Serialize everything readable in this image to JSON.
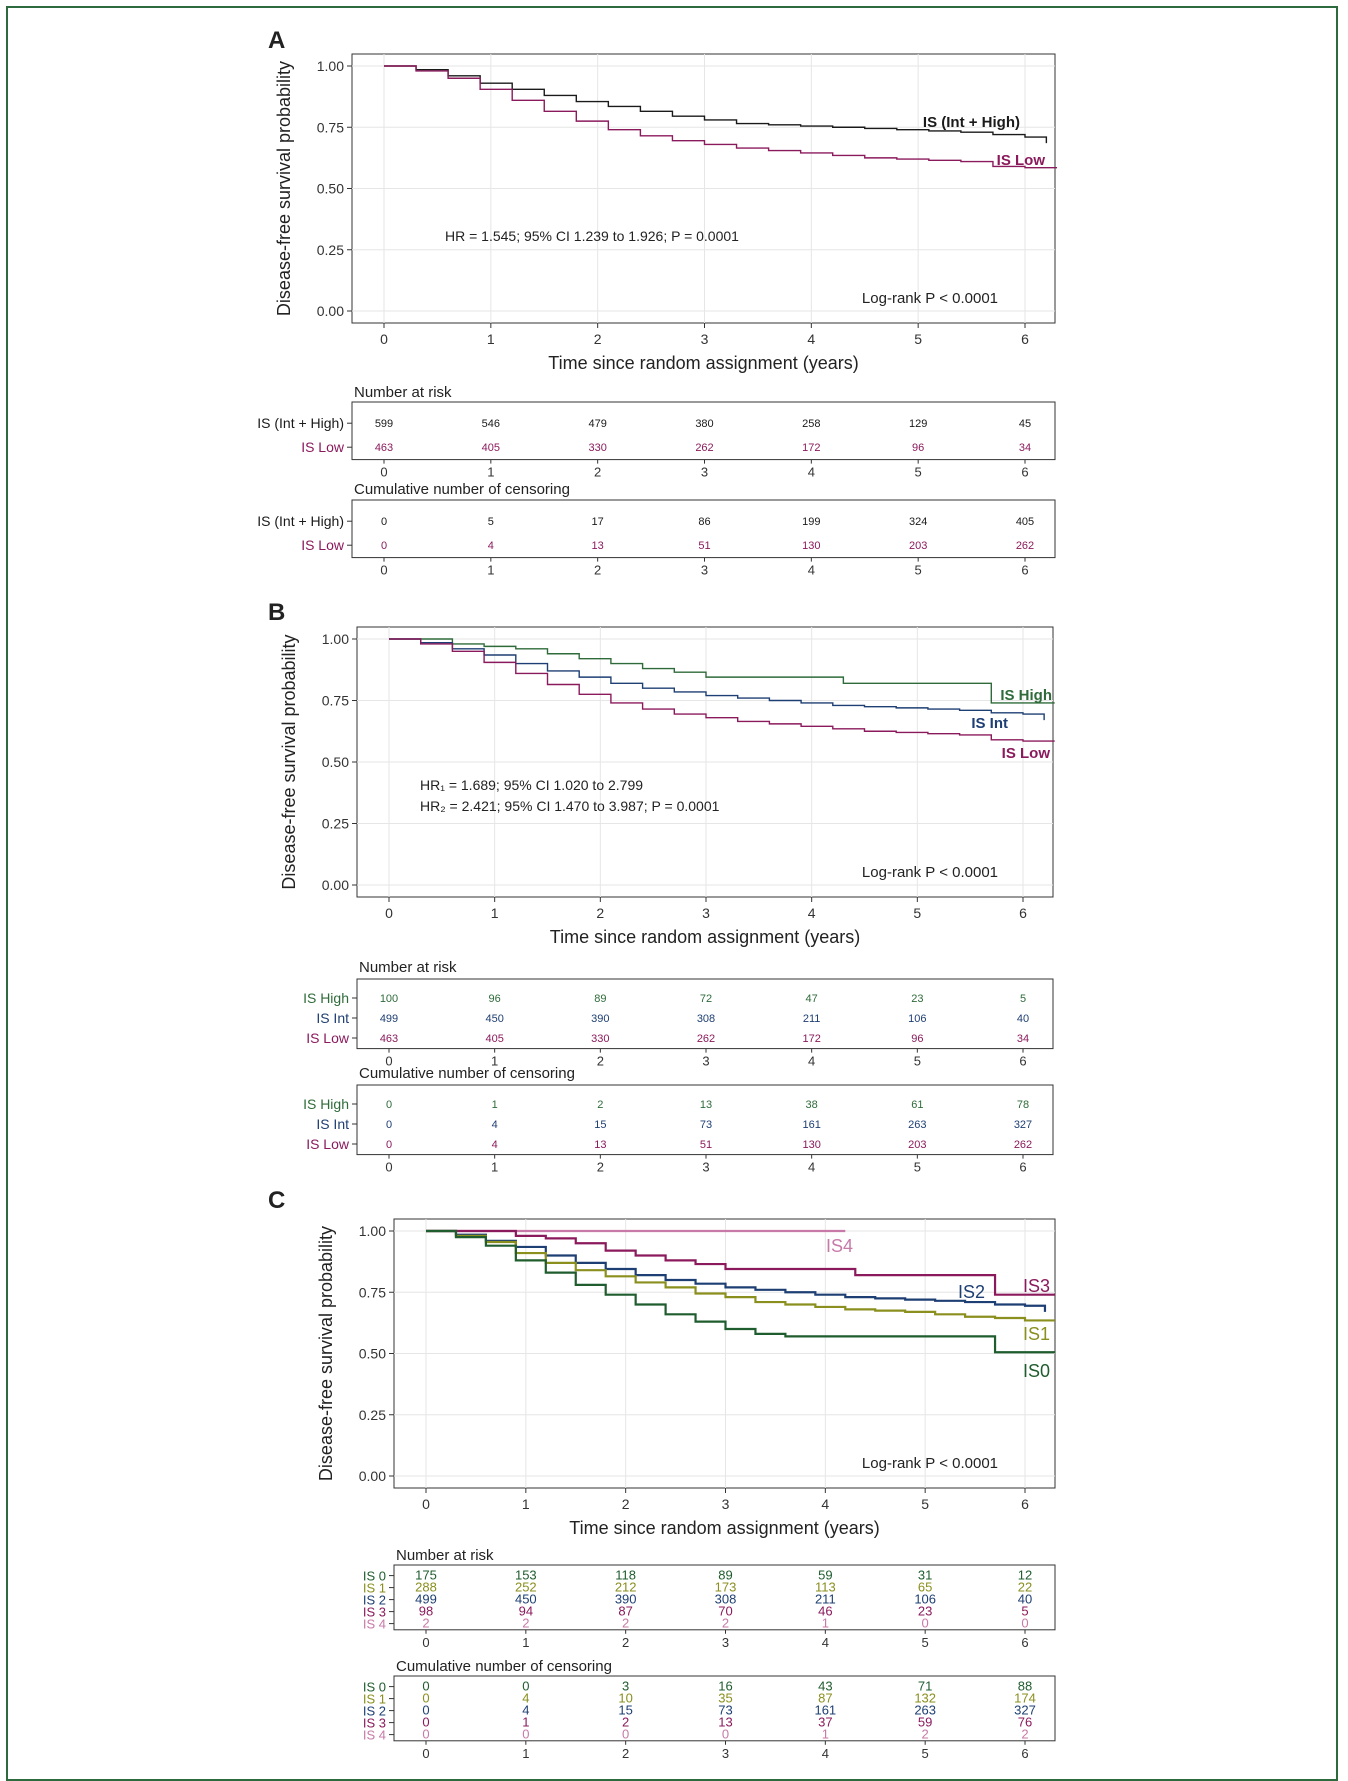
{
  "colors": {
    "IS (Int + High)": "#1a1a1a",
    "IS Low": "#8b1a5c",
    "IS High": "#2f6b3a",
    "IS Int": "#1e3f73",
    "IS0": "#1f5c2e",
    "IS1": "#8a8f1e",
    "IS2": "#1e3f73",
    "IS3": "#8b1a5c",
    "IS4": "#c77aa8"
  },
  "chart_data": [
    {
      "panel": "A",
      "type": "line",
      "ylabel": "Disease-free survival probability",
      "xlabel": "Time since random assignment (years)",
      "xlim": [
        0,
        6.3
      ],
      "ylim": [
        0,
        1
      ],
      "yticks": [
        "0.00",
        "0.25",
        "0.50",
        "0.75",
        "1.00"
      ],
      "xticks": [
        "0",
        "1",
        "2",
        "3",
        "4",
        "5",
        "6"
      ],
      "grid": true,
      "annotation": "HR = 1.545; 95% CI  1.239  to  1.926; P  =  0.0001",
      "logrank": "Log-rank P < 0.0001",
      "series": [
        {
          "name": "IS (Int + High)",
          "x": [
            0,
            0.3,
            0.6,
            0.9,
            1.2,
            1.5,
            1.8,
            2.1,
            2.4,
            2.7,
            3.0,
            3.3,
            3.6,
            3.9,
            4.2,
            4.5,
            4.8,
            5.1,
            5.4,
            5.7,
            6.0,
            6.2
          ],
          "y": [
            1.0,
            0.985,
            0.96,
            0.93,
            0.905,
            0.88,
            0.855,
            0.835,
            0.815,
            0.795,
            0.78,
            0.765,
            0.76,
            0.755,
            0.75,
            0.745,
            0.74,
            0.735,
            0.73,
            0.72,
            0.71,
            0.685
          ]
        },
        {
          "name": "IS Low",
          "x": [
            0,
            0.3,
            0.6,
            0.9,
            1.2,
            1.5,
            1.8,
            2.1,
            2.4,
            2.7,
            3.0,
            3.3,
            3.6,
            3.9,
            4.2,
            4.5,
            4.8,
            5.1,
            5.4,
            5.7,
            6.0,
            6.3
          ],
          "y": [
            1.0,
            0.98,
            0.95,
            0.905,
            0.86,
            0.815,
            0.775,
            0.74,
            0.715,
            0.695,
            0.68,
            0.665,
            0.655,
            0.645,
            0.635,
            0.625,
            0.62,
            0.615,
            0.61,
            0.59,
            0.585,
            0.585
          ]
        }
      ],
      "risk_table": {
        "title": "Number at risk",
        "rows": [
          {
            "label": "IS (Int + High)",
            "values": [
              "599",
              "546",
              "479",
              "380",
              "258",
              "129",
              "45"
            ]
          },
          {
            "label": "IS Low",
            "values": [
              "463",
              "405",
              "330",
              "262",
              "172",
              "96",
              "34"
            ]
          }
        ]
      },
      "censor_table": {
        "title": "Cumulative number of censoring",
        "rows": [
          {
            "label": "IS (Int + High)",
            "values": [
              "0",
              "5",
              "17",
              "86",
              "199",
              "324",
              "405"
            ]
          },
          {
            "label": "IS Low",
            "values": [
              "0",
              "4",
              "13",
              "51",
              "130",
              "203",
              "262"
            ]
          }
        ]
      }
    },
    {
      "panel": "B",
      "type": "line",
      "ylabel": "Disease-free survival probability",
      "xlabel": "Time since random assignment (years)",
      "xlim": [
        0,
        6.3
      ],
      "ylim": [
        0,
        1
      ],
      "yticks": [
        "0.00",
        "0.25",
        "0.50",
        "0.75",
        "1.00"
      ],
      "xticks": [
        "0",
        "1",
        "2",
        "3",
        "4",
        "5",
        "6"
      ],
      "grid": true,
      "annotation_line1": "HR₁ = 1.689; 95% CI  1.020  to  2.799",
      "annotation_line2": "HR₂ = 2.421; 95% CI  1.470  to  3.987;  P  =  0.0001",
      "logrank": "Log-rank P < 0.0001",
      "series": [
        {
          "name": "IS High",
          "x": [
            0,
            0.6,
            0.9,
            1.2,
            1.5,
            1.8,
            2.1,
            2.4,
            2.7,
            3.0,
            3.6,
            4.3,
            5.0,
            5.7,
            6.3
          ],
          "y": [
            1.0,
            0.98,
            0.97,
            0.96,
            0.94,
            0.92,
            0.9,
            0.88,
            0.865,
            0.845,
            0.845,
            0.82,
            0.82,
            0.74,
            0.74
          ]
        },
        {
          "name": "IS Int",
          "x": [
            0,
            0.3,
            0.6,
            0.9,
            1.2,
            1.5,
            1.8,
            2.1,
            2.4,
            2.7,
            3.0,
            3.3,
            3.6,
            3.9,
            4.2,
            4.5,
            4.8,
            5.1,
            5.4,
            5.7,
            6.0,
            6.2
          ],
          "y": [
            1.0,
            0.985,
            0.96,
            0.935,
            0.9,
            0.87,
            0.845,
            0.82,
            0.8,
            0.785,
            0.77,
            0.76,
            0.75,
            0.74,
            0.73,
            0.725,
            0.72,
            0.715,
            0.71,
            0.7,
            0.695,
            0.67
          ]
        },
        {
          "name": "IS Low",
          "x": [
            0,
            0.3,
            0.6,
            0.9,
            1.2,
            1.5,
            1.8,
            2.1,
            2.4,
            2.7,
            3.0,
            3.3,
            3.6,
            3.9,
            4.2,
            4.5,
            4.8,
            5.1,
            5.4,
            5.7,
            6.0,
            6.3
          ],
          "y": [
            1.0,
            0.98,
            0.95,
            0.905,
            0.86,
            0.815,
            0.775,
            0.74,
            0.715,
            0.695,
            0.68,
            0.665,
            0.655,
            0.645,
            0.635,
            0.625,
            0.62,
            0.615,
            0.61,
            0.59,
            0.585,
            0.585
          ]
        }
      ],
      "risk_table": {
        "title": "Number at risk",
        "rows": [
          {
            "label": "IS High",
            "values": [
              "100",
              "96",
              "89",
              "72",
              "47",
              "23",
              "5"
            ]
          },
          {
            "label": "IS Int",
            "values": [
              "499",
              "450",
              "390",
              "308",
              "211",
              "106",
              "40"
            ]
          },
          {
            "label": "IS Low",
            "values": [
              "463",
              "405",
              "330",
              "262",
              "172",
              "96",
              "34"
            ]
          }
        ]
      },
      "censor_table": {
        "title": "Cumulative number of censoring",
        "rows": [
          {
            "label": "IS High",
            "values": [
              "0",
              "1",
              "2",
              "13",
              "38",
              "61",
              "78"
            ]
          },
          {
            "label": "IS Int",
            "values": [
              "0",
              "4",
              "15",
              "73",
              "161",
              "263",
              "327"
            ]
          },
          {
            "label": "IS Low",
            "values": [
              "0",
              "4",
              "13",
              "51",
              "130",
              "203",
              "262"
            ]
          }
        ]
      }
    },
    {
      "panel": "C",
      "type": "line",
      "ylabel": "Disease-free survival probability",
      "xlabel": "Time since random assignment (years)",
      "xlim": [
        0,
        6.3
      ],
      "ylim": [
        0,
        1
      ],
      "yticks": [
        "0.00",
        "0.25",
        "0.50",
        "0.75",
        "1.00"
      ],
      "xticks": [
        "0",
        "1",
        "2",
        "3",
        "4",
        "5",
        "6"
      ],
      "grid": true,
      "logrank": "Log-rank P < 0.0001",
      "series": [
        {
          "name": "IS4",
          "x": [
            0,
            4.2
          ],
          "y": [
            1.0,
            1.0
          ]
        },
        {
          "name": "IS3",
          "x": [
            0,
            0.9,
            1.2,
            1.5,
            1.8,
            2.1,
            2.4,
            2.7,
            3.0,
            3.6,
            4.3,
            5.0,
            5.7,
            6.3
          ],
          "y": [
            1.0,
            0.98,
            0.97,
            0.95,
            0.92,
            0.9,
            0.88,
            0.865,
            0.845,
            0.845,
            0.82,
            0.82,
            0.74,
            0.74
          ]
        },
        {
          "name": "IS2",
          "x": [
            0,
            0.3,
            0.6,
            0.9,
            1.2,
            1.5,
            1.8,
            2.1,
            2.4,
            2.7,
            3.0,
            3.3,
            3.6,
            3.9,
            4.2,
            4.5,
            4.8,
            5.1,
            5.4,
            5.7,
            6.0,
            6.2
          ],
          "y": [
            1.0,
            0.985,
            0.96,
            0.935,
            0.9,
            0.87,
            0.845,
            0.82,
            0.8,
            0.785,
            0.77,
            0.76,
            0.75,
            0.74,
            0.73,
            0.725,
            0.72,
            0.715,
            0.71,
            0.7,
            0.695,
            0.67
          ]
        },
        {
          "name": "IS1",
          "x": [
            0,
            0.3,
            0.6,
            0.9,
            1.2,
            1.5,
            1.8,
            2.1,
            2.4,
            2.7,
            3.0,
            3.3,
            3.6,
            3.9,
            4.2,
            4.5,
            4.8,
            5.1,
            5.4,
            5.7,
            6.0,
            6.3
          ],
          "y": [
            1.0,
            0.98,
            0.955,
            0.91,
            0.87,
            0.84,
            0.815,
            0.79,
            0.77,
            0.745,
            0.73,
            0.71,
            0.7,
            0.69,
            0.68,
            0.675,
            0.67,
            0.66,
            0.65,
            0.645,
            0.635,
            0.635
          ]
        },
        {
          "name": "IS0",
          "x": [
            0,
            0.3,
            0.6,
            0.9,
            1.2,
            1.5,
            1.8,
            2.1,
            2.4,
            2.7,
            3.0,
            3.3,
            3.6,
            3.9,
            4.2,
            4.5,
            4.8,
            5.1,
            5.4,
            5.7,
            6.0,
            6.3
          ],
          "y": [
            1.0,
            0.975,
            0.94,
            0.88,
            0.83,
            0.78,
            0.74,
            0.7,
            0.66,
            0.63,
            0.6,
            0.58,
            0.57,
            0.57,
            0.57,
            0.57,
            0.57,
            0.57,
            0.57,
            0.505,
            0.505,
            0.505
          ]
        }
      ],
      "risk_table": {
        "title": "Number at risk",
        "rows": [
          {
            "label": "IS 0",
            "values": [
              "175",
              "153",
              "118",
              "89",
              "59",
              "31",
              "12"
            ]
          },
          {
            "label": "IS 1",
            "values": [
              "288",
              "252",
              "212",
              "173",
              "113",
              "65",
              "22"
            ]
          },
          {
            "label": "IS 2",
            "values": [
              "499",
              "450",
              "390",
              "308",
              "211",
              "106",
              "40"
            ]
          },
          {
            "label": "IS 3",
            "values": [
              "98",
              "94",
              "87",
              "70",
              "46",
              "23",
              "5"
            ]
          },
          {
            "label": "IS 4",
            "values": [
              "2",
              "2",
              "2",
              "2",
              "1",
              "0",
              "0"
            ]
          }
        ]
      },
      "censor_table": {
        "title": "Cumulative number of censoring",
        "rows": [
          {
            "label": "IS 0",
            "values": [
              "0",
              "0",
              "3",
              "16",
              "43",
              "71",
              "88"
            ]
          },
          {
            "label": "IS 1",
            "values": [
              "0",
              "4",
              "10",
              "35",
              "87",
              "132",
              "174"
            ]
          },
          {
            "label": "IS 2",
            "values": [
              "0",
              "4",
              "15",
              "73",
              "161",
              "263",
              "327"
            ]
          },
          {
            "label": "IS 3",
            "values": [
              "0",
              "1",
              "2",
              "13",
              "37",
              "59",
              "76"
            ]
          },
          {
            "label": "IS 4",
            "values": [
              "0",
              "0",
              "0",
              "0",
              "1",
              "2",
              "2"
            ]
          }
        ]
      }
    }
  ]
}
